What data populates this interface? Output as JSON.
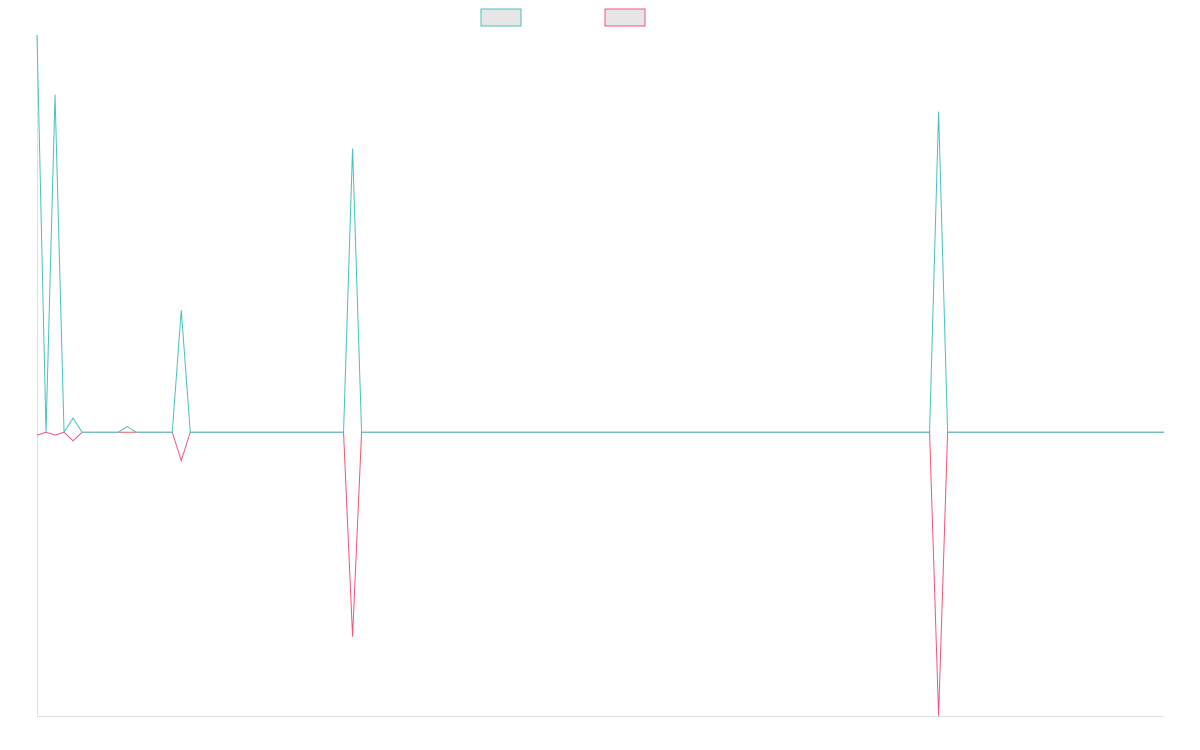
{
  "chart_data": {
    "type": "line",
    "title": "",
    "xlabel": "",
    "ylabel": "",
    "x_count": 126,
    "ylim": [
      -100,
      140
    ],
    "grid": false,
    "legend_position": "top-center",
    "colors": {
      "series_a": "#4bbfbf",
      "series_b": "#f0557a",
      "legend_fill": "#e6e6e6",
      "axis": "#e0e0e0"
    },
    "series": [
      {
        "key": "series_a",
        "name": "",
        "points": [
          [
            0,
            140
          ],
          [
            1,
            0
          ],
          [
            2,
            119
          ],
          [
            3,
            0
          ],
          [
            4,
            5
          ],
          [
            5,
            0
          ],
          [
            9,
            0
          ],
          [
            10,
            2
          ],
          [
            11,
            0
          ],
          [
            15,
            0
          ],
          [
            16,
            43
          ],
          [
            17,
            0
          ],
          [
            34,
            0
          ],
          [
            35,
            100
          ],
          [
            36,
            0
          ],
          [
            99,
            0
          ],
          [
            100,
            113
          ],
          [
            101,
            0
          ],
          [
            125,
            0
          ]
        ]
      },
      {
        "key": "series_b",
        "name": "",
        "points": [
          [
            0,
            -1
          ],
          [
            1,
            0
          ],
          [
            2,
            -1
          ],
          [
            3,
            0
          ],
          [
            4,
            -3
          ],
          [
            5,
            0
          ],
          [
            15,
            0
          ],
          [
            16,
            -10
          ],
          [
            17,
            0
          ],
          [
            34,
            0
          ],
          [
            35,
            -72
          ],
          [
            36,
            0
          ],
          [
            99,
            0
          ],
          [
            100,
            -100
          ],
          [
            101,
            0
          ],
          [
            125,
            0
          ]
        ]
      }
    ]
  }
}
